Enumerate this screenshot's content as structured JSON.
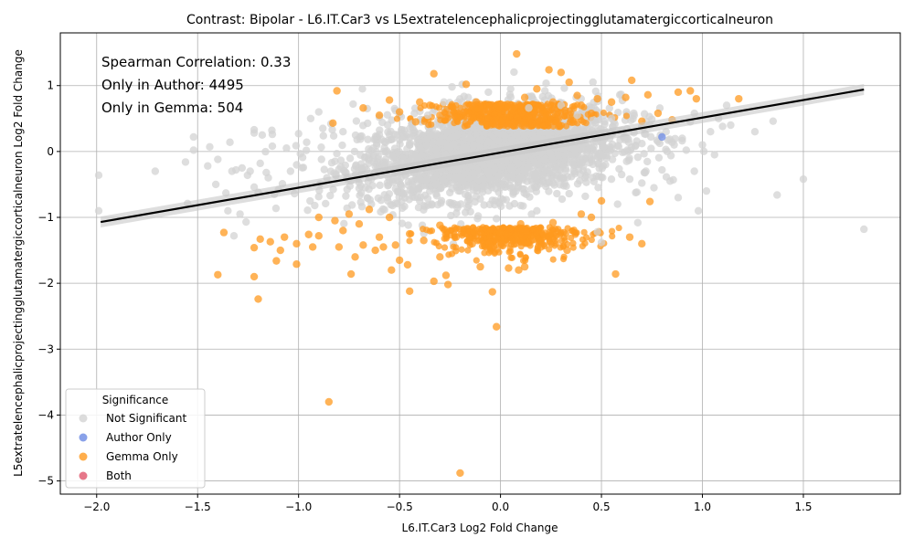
{
  "chart_data": {
    "type": "scatter",
    "title": "Contrast: Bipolar - L6.IT.Car3 vs L5extratelencephalicprojectingglutamatergiccorticalneuron",
    "xlabel": "L6.IT.Car3 Log2 Fold Change",
    "ylabel": "L5extratelencephalicprojectingglutamatergiccorticalneuron Log2 Fold Change",
    "xlim": [
      -2.18,
      1.98
    ],
    "ylim": [
      -5.2,
      1.8
    ],
    "xticks": [
      -2.0,
      -1.5,
      -1.0,
      -0.5,
      0.0,
      0.5,
      1.0,
      1.5
    ],
    "xtick_labels": [
      "−2.0",
      "−1.5",
      "−1.0",
      "−0.5",
      "0.0",
      "0.5",
      "1.0",
      "1.5"
    ],
    "yticks": [
      -5,
      -4,
      -3,
      -2,
      -1,
      0,
      1
    ],
    "ytick_labels": [
      "−5",
      "−4",
      "−3",
      "−2",
      "−1",
      "0",
      "1"
    ],
    "grid": true,
    "annotations": [
      "Spearman Correlation: 0.33",
      "Only in Author: 4495",
      "Only in Gemma: 504"
    ],
    "legend": {
      "title": "Significance",
      "placement": "lower-left",
      "entries": [
        {
          "label": "Not Significant",
          "color": "#d3d3d3"
        },
        {
          "label": "Author Only",
          "color": "#6c8ae4"
        },
        {
          "label": "Gemma Only",
          "color": "#ff9a1f"
        },
        {
          "label": "Both",
          "color": "#e0556b"
        }
      ]
    },
    "regression_line": {
      "x": [
        -1.98,
        1.8
      ],
      "y": [
        -1.07,
        0.94
      ],
      "color": "#000000"
    },
    "series": [
      {
        "name": "Not Significant",
        "color": "#d3d3d3",
        "points": [
          [
            -1.99,
            -0.36
          ],
          [
            -1.99,
            -0.9
          ],
          [
            -1.71,
            -0.3
          ],
          [
            -1.56,
            -0.16
          ],
          [
            -1.55,
            -0.79
          ],
          [
            -1.52,
            0.22
          ],
          [
            -1.52,
            0.02
          ],
          [
            -1.45,
            -0.22
          ],
          [
            -1.44,
            0.07
          ],
          [
            -1.41,
            -0.5
          ],
          [
            -1.4,
            -0.12
          ],
          [
            -1.36,
            -0.63
          ],
          [
            -1.35,
            -0.9
          ],
          [
            -1.34,
            0.14
          ],
          [
            -1.33,
            -0.3
          ],
          [
            -1.32,
            -1.28
          ],
          [
            -1.31,
            -0.28
          ],
          [
            -1.29,
            -0.95
          ],
          [
            -1.28,
            -0.25
          ],
          [
            -1.26,
            -1.07
          ],
          [
            -1.24,
            -0.3
          ],
          [
            -1.22,
            0.33
          ],
          [
            -1.22,
            0.28
          ],
          [
            -1.22,
            -0.54
          ],
          [
            -1.2,
            -0.62
          ],
          [
            -1.19,
            -0.18
          ],
          [
            -1.18,
            0.25
          ],
          [
            -1.16,
            -0.32
          ],
          [
            -1.15,
            -0.4
          ],
          [
            -1.13,
            0.26
          ],
          [
            -1.13,
            0.08
          ],
          [
            -1.12,
            -0.65
          ],
          [
            -1.1,
            -0.58
          ],
          [
            -1.08,
            -0.49
          ],
          [
            -1.06,
            0.05
          ],
          [
            -1.04,
            -0.3
          ],
          [
            -1.02,
            -0.64
          ],
          [
            -1.0,
            0.27
          ],
          [
            -0.98,
            -0.09
          ],
          [
            -0.96,
            0.14
          ],
          [
            -0.94,
            0.5
          ],
          [
            -0.92,
            -0.82
          ],
          [
            -0.9,
            0.6
          ],
          [
            -0.88,
            0.35
          ],
          [
            -0.86,
            -0.4
          ],
          [
            -0.84,
            0.42
          ],
          [
            -0.82,
            -0.15
          ],
          [
            -0.78,
            0.3
          ],
          [
            -0.76,
            -0.86
          ],
          [
            -0.73,
            0.72
          ],
          [
            -0.7,
            -0.56
          ],
          [
            -0.66,
            0.65
          ],
          [
            -0.63,
            0.05
          ],
          [
            -0.6,
            0.52
          ],
          [
            -0.56,
            -0.7
          ],
          [
            -0.52,
            0.62
          ],
          [
            -0.48,
            -0.65
          ],
          [
            -0.44,
            0.42
          ],
          [
            -0.4,
            -0.75
          ],
          [
            -0.36,
            0.55
          ],
          [
            -0.32,
            -0.5
          ],
          [
            -0.28,
            0.75
          ],
          [
            -0.24,
            0.98
          ],
          [
            -0.2,
            -0.6
          ],
          [
            -0.16,
            0.82
          ],
          [
            -0.1,
            -0.72
          ],
          [
            -0.06,
            0.9
          ],
          [
            0.0,
            -0.55
          ],
          [
            0.05,
            0.95
          ],
          [
            0.1,
            -0.82
          ],
          [
            0.14,
            0.66
          ],
          [
            0.18,
            -0.9
          ],
          [
            0.22,
            0.92
          ],
          [
            0.26,
            -0.48
          ],
          [
            0.3,
            0.7
          ],
          [
            0.34,
            -0.64
          ],
          [
            0.38,
            0.55
          ],
          [
            0.42,
            -0.68
          ],
          [
            0.46,
            0.48
          ],
          [
            0.48,
            -1.22
          ],
          [
            0.5,
            -1.38
          ],
          [
            0.52,
            -0.2
          ],
          [
            0.55,
            0.5
          ],
          [
            0.58,
            -0.8
          ],
          [
            0.6,
            -0.35
          ],
          [
            0.62,
            0.2
          ],
          [
            0.64,
            -0.42
          ],
          [
            0.66,
            0.58
          ],
          [
            0.68,
            -1.08
          ],
          [
            0.7,
            -0.48
          ],
          [
            0.72,
            -0.3
          ],
          [
            0.74,
            0.4
          ],
          [
            0.76,
            -0.55
          ],
          [
            0.78,
            0.15
          ],
          [
            0.8,
            -0.28
          ],
          [
            0.82,
            0.3
          ],
          [
            0.84,
            -0.45
          ],
          [
            0.86,
            0.1
          ],
          [
            0.88,
            -0.7
          ],
          [
            0.9,
            0.2
          ],
          [
            0.92,
            0.02
          ],
          [
            0.94,
            0.45
          ],
          [
            0.96,
            -0.3
          ],
          [
            0.98,
            -0.9
          ],
          [
            1.0,
            0.1
          ],
          [
            1.02,
            -0.6
          ],
          [
            1.04,
            0.3
          ],
          [
            1.06,
            -0.05
          ],
          [
            1.08,
            0.5
          ],
          [
            1.1,
            0.38
          ],
          [
            1.12,
            0.7
          ],
          [
            1.14,
            0.4
          ],
          [
            1.26,
            0.3
          ],
          [
            1.35,
            0.46
          ],
          [
            1.37,
            -0.66
          ],
          [
            1.5,
            -0.42
          ],
          [
            1.8,
            -1.18
          ]
        ]
      },
      {
        "name": "Author Only",
        "color": "#6c8ae4",
        "points": [
          [
            0.8,
            0.22
          ]
        ]
      },
      {
        "name": "Gemma Only",
        "color": "#ff9a1f",
        "points": [
          [
            -1.4,
            -1.87
          ],
          [
            -1.37,
            -1.23
          ],
          [
            -1.22,
            -1.9
          ],
          [
            -1.22,
            -1.46
          ],
          [
            -1.2,
            -2.24
          ],
          [
            -1.19,
            -1.33
          ],
          [
            -1.14,
            -1.37
          ],
          [
            -1.11,
            -1.66
          ],
          [
            -1.09,
            -1.5
          ],
          [
            -1.07,
            -1.3
          ],
          [
            -1.01,
            -1.71
          ],
          [
            -1.01,
            -1.4
          ],
          [
            -0.95,
            -1.26
          ],
          [
            -0.93,
            -1.45
          ],
          [
            -0.9,
            -1.0
          ],
          [
            -0.85,
            -3.8
          ],
          [
            -0.83,
            0.43
          ],
          [
            -0.81,
            0.92
          ],
          [
            -0.8,
            -1.45
          ],
          [
            -0.78,
            -1.2
          ],
          [
            -0.74,
            -1.86
          ],
          [
            -0.72,
            -1.6
          ],
          [
            -0.68,
            -1.42
          ],
          [
            -0.68,
            0.66
          ],
          [
            -0.62,
            -1.5
          ],
          [
            -0.58,
            -1.45
          ],
          [
            -0.55,
            0.78
          ],
          [
            -0.54,
            -1.8
          ],
          [
            -0.5,
            -1.65
          ],
          [
            -0.46,
            -1.72
          ],
          [
            -0.45,
            -2.12
          ],
          [
            -0.4,
            0.75
          ],
          [
            -0.33,
            1.18
          ],
          [
            -0.33,
            -1.97
          ],
          [
            -0.3,
            -1.6
          ],
          [
            -0.27,
            -1.88
          ],
          [
            -0.26,
            -2.02
          ],
          [
            -0.2,
            -4.88
          ],
          [
            -0.17,
            1.02
          ],
          [
            -0.1,
            -1.75
          ],
          [
            -0.04,
            -2.13
          ],
          [
            -0.02,
            -2.66
          ],
          [
            0.04,
            -1.77
          ],
          [
            0.08,
            1.48
          ],
          [
            0.09,
            -1.8
          ],
          [
            0.12,
            -1.75
          ],
          [
            0.18,
            0.95
          ],
          [
            0.2,
            -1.45
          ],
          [
            0.24,
            1.24
          ],
          [
            0.3,
            1.2
          ],
          [
            0.34,
            1.05
          ],
          [
            0.38,
            0.85
          ],
          [
            0.45,
            0.58
          ],
          [
            0.5,
            -0.75
          ],
          [
            0.55,
            0.75
          ],
          [
            0.57,
            -1.86
          ],
          [
            0.64,
            -1.3
          ],
          [
            0.65,
            1.08
          ],
          [
            0.7,
            -1.4
          ],
          [
            0.73,
            0.86
          ],
          [
            0.74,
            -0.76
          ],
          [
            0.78,
            0.58
          ],
          [
            0.85,
            0.48
          ],
          [
            0.88,
            0.9
          ],
          [
            0.94,
            0.92
          ],
          [
            0.97,
            0.8
          ],
          [
            1.18,
            0.8
          ],
          [
            -0.6,
            0.55
          ],
          [
            -0.5,
            0.6
          ],
          [
            -0.42,
            0.45
          ],
          [
            -0.35,
            0.7
          ],
          [
            -0.3,
            0.55
          ],
          [
            -0.24,
            0.68
          ],
          [
            -0.18,
            0.6
          ],
          [
            -0.12,
            0.75
          ],
          [
            -0.06,
            0.62
          ],
          [
            0.0,
            0.72
          ],
          [
            0.06,
            0.58
          ],
          [
            0.12,
            0.82
          ],
          [
            0.2,
            0.66
          ],
          [
            0.26,
            0.75
          ],
          [
            0.32,
            0.62
          ],
          [
            0.4,
            0.7
          ],
          [
            0.48,
            0.8
          ],
          [
            0.62,
            0.82
          ],
          [
            0.7,
            0.46
          ],
          [
            -0.9,
            -1.28
          ],
          [
            -0.82,
            -1.05
          ],
          [
            -0.7,
            -1.1
          ],
          [
            -0.6,
            -1.3
          ],
          [
            -0.52,
            -1.42
          ],
          [
            -0.45,
            -1.25
          ],
          [
            -0.38,
            -1.35
          ],
          [
            -0.3,
            -1.12
          ],
          [
            -0.22,
            -1.3
          ],
          [
            -0.14,
            -1.4
          ],
          [
            -0.06,
            -1.2
          ],
          [
            0.02,
            -1.35
          ],
          [
            0.1,
            -1.1
          ],
          [
            0.18,
            -1.22
          ],
          [
            0.26,
            -1.08
          ],
          [
            0.33,
            -1.5
          ],
          [
            0.4,
            -0.95
          ],
          [
            0.45,
            -1.0
          ],
          [
            -0.75,
            -0.95
          ],
          [
            -0.65,
            -0.88
          ],
          [
            -0.55,
            -1.0
          ]
        ]
      }
    ]
  }
}
